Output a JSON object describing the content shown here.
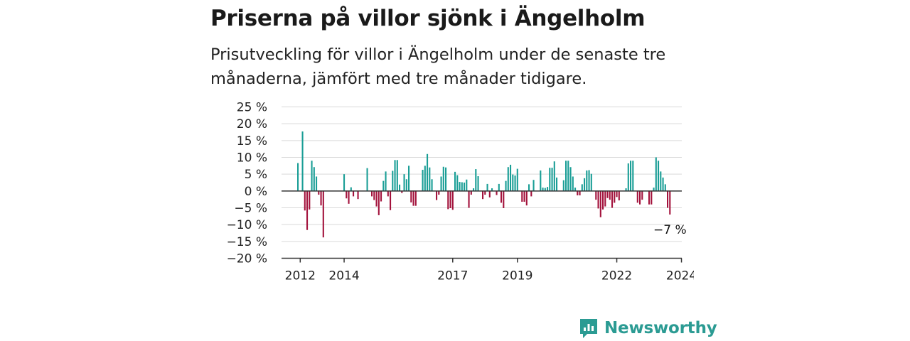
{
  "header": {
    "title": "Priserna på villor sjönk i Ängelholm",
    "subtitle": "Prisutveckling för villor i Ängelholm under de senaste tre månaderna, jämfört med tre månader tidigare."
  },
  "brand": {
    "name": "Newsworthy",
    "icon": "newsworthy-logo-icon",
    "color": "#2b9b93"
  },
  "chart_data": {
    "type": "bar",
    "title": "Priserna på villor sjönk i Ängelholm",
    "subtitle": "Prisutveckling för villor i Ängelholm under de senaste tre månaderna, jämfört med tre månader tidigare.",
    "ylabel": "",
    "xlabel": "",
    "ylim": [
      -20,
      25
    ],
    "y_ticks": [
      25,
      20,
      15,
      10,
      5,
      0,
      -5,
      -10,
      -15,
      -20
    ],
    "y_tick_labels": [
      "25 %",
      "20 %",
      "15 %",
      "10 %",
      "5 %",
      "0 %",
      "−5 %",
      "−10 %",
      "−15 %",
      "−20 %"
    ],
    "x_tick_labels": [
      "2012",
      "2014",
      "2017",
      "2019",
      "2022",
      "2024"
    ],
    "x_tick_index": [
      1,
      20,
      67,
      95,
      138,
      166
    ],
    "grid": true,
    "colors": {
      "positive": "#1a9e96",
      "negative": "#a3123c"
    },
    "last_label": "−7 %",
    "values": [
      8.3,
      0,
      17.7,
      -5.8,
      -11.6,
      -5.5,
      9,
      7.1,
      4.3,
      -1.1,
      -4.3,
      -13.8,
      0,
      0,
      0,
      0,
      0,
      0,
      0,
      0,
      5,
      -2.2,
      -3.8,
      1.1,
      -1.6,
      0,
      -2.4,
      0,
      0,
      0,
      6.8,
      0,
      -1.6,
      -2.7,
      -4.6,
      -7.2,
      -3.1,
      3,
      5.8,
      -1.6,
      -5.7,
      6,
      9.2,
      9.2,
      1.9,
      -0.6,
      5,
      3.5,
      7.5,
      -3.4,
      -4.4,
      -4.4,
      0,
      0,
      6.3,
      7.5,
      11,
      7,
      3.5,
      0,
      -2.7,
      -1.1,
      4.3,
      7.2,
      7,
      -5.4,
      -5.1,
      -5.6,
      5.7,
      4.7,
      2.7,
      2.6,
      2.5,
      3.4,
      -5,
      -1.1,
      0.8,
      6.5,
      4.4,
      0,
      -2.4,
      -1.1,
      2.1,
      -1.9,
      0.8,
      0,
      -1.2,
      2.1,
      -3.5,
      -5.1,
      3,
      7.1,
      7.8,
      4.9,
      4.6,
      6.6,
      0,
      -3.2,
      -3.2,
      -4.3,
      2,
      -1.6,
      3.3,
      0,
      0,
      6.1,
      1,
      0.9,
      1.2,
      6.9,
      6.9,
      8.8,
      4,
      0,
      0,
      3.2,
      9,
      9,
      7.1,
      4.3,
      1,
      -1.3,
      -1.3,
      2,
      3.8,
      6.1,
      6.2,
      5.1,
      0,
      -2.6,
      -5.2,
      -7.8,
      -5.5,
      -4.6,
      -2.1,
      -2.6,
      -5,
      -3.5,
      -1.8,
      -2.8,
      0,
      0,
      0.8,
      8.2,
      9,
      9,
      0,
      -3.5,
      -4,
      -2.6,
      0,
      0,
      -4,
      -4,
      1,
      10,
      9,
      5.8,
      4,
      2,
      -5,
      -7
    ]
  }
}
